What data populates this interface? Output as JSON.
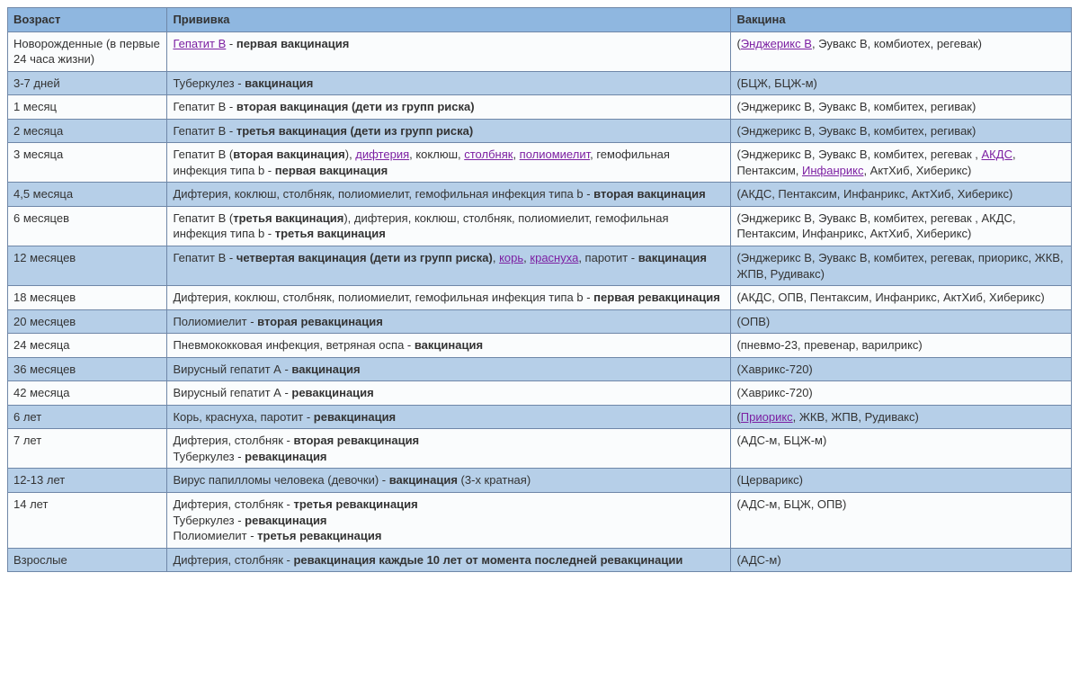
{
  "table": {
    "columns": [
      "Возраст",
      "Прививка",
      "Вакцина"
    ],
    "header_bg": "#8fb7e0",
    "alt_bg": "#b6cfe8",
    "plain_bg": "#fafcfd",
    "border_color": "#6f87a8",
    "link_color": "#7c1fa2",
    "font_family": "Verdana",
    "font_size_pt": 10,
    "rows": [
      {
        "alt": false,
        "age": "Новорожденные (в первые 24 часа жизни)",
        "vaccination_parts": [
          {
            "t": "Гепатит В",
            "link": true
          },
          {
            "t": " - "
          },
          {
            "t": "первая вакцинация",
            "bold": true
          }
        ],
        "vaccine_parts": [
          {
            "t": "("
          },
          {
            "t": "Энджерикс В",
            "link": true
          },
          {
            "t": ", Эувакс В, комбиотех, регевак)"
          }
        ]
      },
      {
        "alt": true,
        "age": "3-7 дней",
        "vaccination_parts": [
          {
            "t": "Туберкулез - "
          },
          {
            "t": "вакцинация",
            "bold": true
          }
        ],
        "vaccine_parts": [
          {
            "t": "(БЦЖ, БЦЖ-м)"
          }
        ]
      },
      {
        "alt": false,
        "age": "1 месяц",
        "vaccination_parts": [
          {
            "t": "Гепатит В - "
          },
          {
            "t": "вторая вакцинация (дети из групп риска)",
            "bold": true
          }
        ],
        "vaccine_parts": [
          {
            "t": "(Энджерикс В, Эувакс В, комбитех, регивак)"
          }
        ]
      },
      {
        "alt": true,
        "age": "2 месяца",
        "vaccination_parts": [
          {
            "t": "Гепатит В - "
          },
          {
            "t": "третья вакцинация (дети из групп риска)",
            "bold": true
          }
        ],
        "vaccine_parts": [
          {
            "t": "(Энджерикс В, Эувакс В, комбитех, регивак)"
          }
        ]
      },
      {
        "alt": false,
        "age": "3 месяца",
        "vaccination_parts": [
          {
            "t": "Гепатит В ("
          },
          {
            "t": "вторая вакцинация",
            "bold": true
          },
          {
            "t": "), "
          },
          {
            "t": "дифтерия",
            "link": true
          },
          {
            "t": ", коклюш, "
          },
          {
            "t": "столбняк",
            "link": true
          },
          {
            "t": ", "
          },
          {
            "t": "полиомиелит",
            "link": true
          },
          {
            "t": ", гемофильная инфекция типа b - "
          },
          {
            "t": "первая вакцинация",
            "bold": true
          }
        ],
        "vaccine_parts": [
          {
            "t": "(Энджерикс В, Эувакс В, комбитех, регевак , "
          },
          {
            "t": "АКДС",
            "link": true
          },
          {
            "t": ", Пентаксим, "
          },
          {
            "t": "Инфанрикс",
            "link": true
          },
          {
            "t": ", АктХиб, Хиберикс)"
          }
        ]
      },
      {
        "alt": true,
        "age": "4,5 месяца",
        "vaccination_parts": [
          {
            "t": "Дифтерия, коклюш, столбняк, полиомиелит, гемофильная инфекция типа b - "
          },
          {
            "t": "вторая вакцинация",
            "bold": true
          }
        ],
        "vaccine_parts": [
          {
            "t": "(АКДС, Пентаксим, Инфанрикс, АктХиб, Хиберикс)"
          }
        ]
      },
      {
        "alt": false,
        "age": "6 месяцев",
        "vaccination_parts": [
          {
            "t": "Гепатит В ("
          },
          {
            "t": "третья вакцинация",
            "bold": true
          },
          {
            "t": "), дифтерия, коклюш, столбняк, полиомиелит, гемофильная инфекция типа b - "
          },
          {
            "t": "третья вакцинация",
            "bold": true
          }
        ],
        "vaccine_parts": [
          {
            "t": "(Энджерикс В, Эувакс В, комбитех, регевак , АКДС, Пентаксим, Инфанрикс, АктХиб, Хиберикс)"
          }
        ]
      },
      {
        "alt": true,
        "age": "12 месяцев",
        "vaccination_parts": [
          {
            "t": "Гепатит В - "
          },
          {
            "t": "четвертая вакцинация (дети из групп риска)",
            "bold": true
          },
          {
            "t": ", "
          },
          {
            "t": "корь",
            "link": true
          },
          {
            "t": ", "
          },
          {
            "t": "краснуха",
            "link": true
          },
          {
            "t": ", паротит - "
          },
          {
            "t": "вакцинация",
            "bold": true
          }
        ],
        "vaccine_parts": [
          {
            "t": "(Энджерикс В, Эувакс В, комбитех, регевак, приорикс, ЖКВ, ЖПВ, Рудивакс)"
          }
        ]
      },
      {
        "alt": false,
        "age": "18 месяцев",
        "vaccination_parts": [
          {
            "t": "Дифтерия, коклюш, столбняк, полиомиелит, гемофильная инфекция типа b - "
          },
          {
            "t": "первая ревакцинация",
            "bold": true
          }
        ],
        "vaccine_parts": [
          {
            "t": "(АКДС, ОПВ, Пентаксим, Инфанрикс, АктХиб, Хиберикс)"
          }
        ]
      },
      {
        "alt": true,
        "age": "20 месяцев",
        "vaccination_parts": [
          {
            "t": "Полиомиелит - "
          },
          {
            "t": "вторая ревакцинация",
            "bold": true
          }
        ],
        "vaccine_parts": [
          {
            "t": "(ОПВ)"
          }
        ]
      },
      {
        "alt": false,
        "age": "24 месяца",
        "vaccination_parts": [
          {
            "t": "Пневмококковая инфекция, ветряная оспа - "
          },
          {
            "t": "вакцинация",
            "bold": true
          }
        ],
        "vaccine_parts": [
          {
            "t": "(пневмо-23, превенар, варилрикс)"
          }
        ]
      },
      {
        "alt": true,
        "age": "36 месяцев",
        "vaccination_parts": [
          {
            "t": "Вирусный гепатит А - "
          },
          {
            "t": "вакцинация",
            "bold": true
          }
        ],
        "vaccine_parts": [
          {
            "t": "(Хаврикс-720)"
          }
        ]
      },
      {
        "alt": false,
        "age": "42 месяца",
        "vaccination_parts": [
          {
            "t": "Вирусный гепатит А - "
          },
          {
            "t": "ревакцинация",
            "bold": true
          }
        ],
        "vaccine_parts": [
          {
            "t": "(Хаврикс-720)"
          }
        ]
      },
      {
        "alt": true,
        "age": "6 лет",
        "vaccination_parts": [
          {
            "t": "Корь, краснуха, паротит - "
          },
          {
            "t": "ревакцинация",
            "bold": true
          }
        ],
        "vaccine_parts": [
          {
            "t": "("
          },
          {
            "t": "Приорикс",
            "link": true
          },
          {
            "t": ", ЖКВ, ЖПВ, Рудивакс)"
          }
        ]
      },
      {
        "alt": false,
        "age": "7 лет",
        "vaccination_parts": [
          {
            "t": "Дифтерия, столбняк - "
          },
          {
            "t": "вторая ревакцинация",
            "bold": true
          },
          {
            "t": "\nТуберкулез - "
          },
          {
            "t": "ревакцинация",
            "bold": true
          }
        ],
        "vaccine_parts": [
          {
            "t": "(АДС-м, БЦЖ-м)"
          }
        ]
      },
      {
        "alt": true,
        "age": "12-13 лет",
        "vaccination_parts": [
          {
            "t": "Вирус папилломы человека (девочки) - "
          },
          {
            "t": "вакцинация",
            "bold": true
          },
          {
            "t": " (3-х кратная)"
          }
        ],
        "vaccine_parts": [
          {
            "t": "(Церварикс)"
          }
        ]
      },
      {
        "alt": false,
        "age": "14 лет",
        "vaccination_parts": [
          {
            "t": "Дифтерия, столбняк - "
          },
          {
            "t": "третья ревакцинация",
            "bold": true
          },
          {
            "t": "\nТуберкулез - "
          },
          {
            "t": "ревакцинация",
            "bold": true
          },
          {
            "t": "\nПолиомиелит - "
          },
          {
            "t": "третья ревакцинация",
            "bold": true
          }
        ],
        "vaccine_parts": [
          {
            "t": "(АДС-м, БЦЖ, ОПВ)"
          }
        ]
      },
      {
        "alt": true,
        "age": "Взрослые",
        "vaccination_parts": [
          {
            "t": "Дифтерия, столбняк - "
          },
          {
            "t": "ревакцинация каждые 10 лет от момента последней ревакцинации",
            "bold": true
          }
        ],
        "vaccine_parts": [
          {
            "t": "(АДС-м)"
          }
        ]
      }
    ]
  }
}
